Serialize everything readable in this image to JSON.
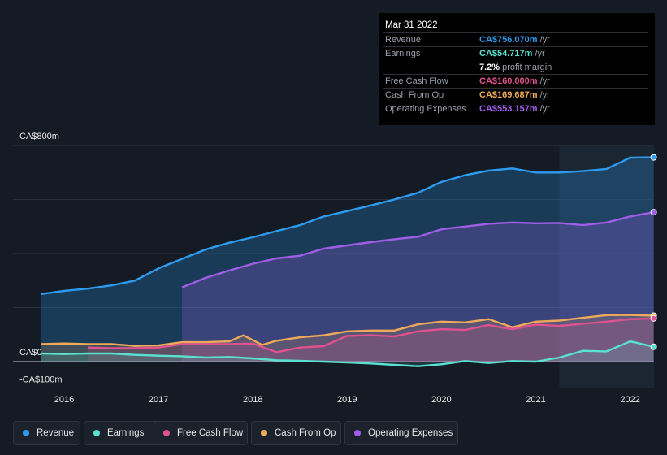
{
  "tooltip": {
    "date": "Mar 31 2022",
    "rows": [
      {
        "label": "Revenue",
        "value": "CA$756.070m",
        "unit": "/yr",
        "color": "#2d9cf0"
      },
      {
        "label": "Earnings",
        "value": "CA$54.717m",
        "unit": "/yr",
        "color": "#59e2cf"
      },
      {
        "label": "Free Cash Flow",
        "value": "CA$160.000m",
        "unit": "/yr",
        "color": "#e0528f"
      },
      {
        "label": "Cash From Op",
        "value": "CA$169.687m",
        "unit": "/yr",
        "color": "#efaa59"
      },
      {
        "label": "Operating Expenses",
        "value": "CA$553.157m",
        "unit": "/yr",
        "color": "#a05de6"
      }
    ],
    "margin_value": "7.2%",
    "margin_label": "profit margin"
  },
  "legend": [
    {
      "label": "Revenue",
      "color": "#2d9cf0"
    },
    {
      "label": "Earnings",
      "color": "#59e2cf"
    },
    {
      "label": "Free Cash Flow",
      "color": "#e0528f"
    },
    {
      "label": "Cash From Op",
      "color": "#efaa59"
    },
    {
      "label": "Operating Expenses",
      "color": "#a05de6"
    }
  ],
  "chart_data": {
    "type": "area",
    "ylim": [
      -100,
      800
    ],
    "y_tick_labels": [
      "CA$800m",
      "CA$0",
      "-CA$100m"
    ],
    "x_tick_labels": [
      "2016",
      "2017",
      "2018",
      "2019",
      "2020",
      "2021",
      "2022"
    ],
    "highlight_start": 2021.25,
    "series": [
      {
        "name": "Revenue",
        "color": "#2d9cf0",
        "x": [
          2015.75,
          2016.0,
          2016.25,
          2016.5,
          2016.75,
          2017.0,
          2017.25,
          2017.5,
          2017.75,
          2018.0,
          2018.25,
          2018.5,
          2018.75,
          2019.0,
          2019.25,
          2019.5,
          2019.75,
          2020.0,
          2020.25,
          2020.5,
          2020.75,
          2021.0,
          2021.25,
          2021.5,
          2021.75,
          2022.0,
          2022.25
        ],
        "values": [
          250,
          262,
          270,
          282,
          300,
          345,
          380,
          415,
          440,
          460,
          483,
          505,
          537,
          557,
          578,
          600,
          625,
          665,
          690,
          707,
          715,
          700,
          700,
          705,
          713,
          755,
          756
        ]
      },
      {
        "name": "Operating Expenses",
        "color": "#a05de6",
        "x": [
          2017.25,
          2017.5,
          2017.75,
          2018.0,
          2018.25,
          2018.5,
          2018.75,
          2019.0,
          2019.25,
          2019.5,
          2019.75,
          2020.0,
          2020.25,
          2020.5,
          2020.75,
          2021.0,
          2021.25,
          2021.5,
          2021.75,
          2022.0,
          2022.25
        ],
        "values": [
          275,
          310,
          337,
          362,
          382,
          392,
          418,
          430,
          442,
          453,
          462,
          490,
          500,
          510,
          515,
          512,
          513,
          505,
          515,
          537,
          553
        ]
      },
      {
        "name": "Cash From Op",
        "color": "#efaa59",
        "x": [
          2015.75,
          2016.0,
          2016.25,
          2016.5,
          2016.75,
          2017.0,
          2017.25,
          2017.5,
          2017.75,
          2017.9,
          2018.1,
          2018.25,
          2018.5,
          2018.75,
          2019.0,
          2019.25,
          2019.5,
          2019.75,
          2020.0,
          2020.25,
          2020.5,
          2020.75,
          2021.0,
          2021.25,
          2021.5,
          2021.75,
          2022.0,
          2022.25
        ],
        "values": [
          65,
          67,
          65,
          65,
          58,
          60,
          72,
          72,
          75,
          97,
          62,
          77,
          90,
          97,
          112,
          115,
          115,
          138,
          148,
          145,
          157,
          127,
          148,
          152,
          162,
          172,
          173,
          170
        ]
      },
      {
        "name": "Free Cash Flow",
        "color": "#e0528f",
        "x": [
          2016.25,
          2016.5,
          2016.75,
          2017.0,
          2017.25,
          2017.5,
          2017.75,
          2018.0,
          2018.25,
          2018.5,
          2018.75,
          2019.0,
          2019.25,
          2019.5,
          2019.75,
          2020.0,
          2020.25,
          2020.5,
          2020.75,
          2021.0,
          2021.25,
          2021.5,
          2021.75,
          2022.0,
          2022.25
        ],
        "values": [
          52,
          50,
          50,
          52,
          65,
          65,
          65,
          67,
          35,
          52,
          57,
          95,
          98,
          93,
          112,
          120,
          117,
          135,
          120,
          137,
          132,
          140,
          148,
          157,
          160
        ]
      },
      {
        "name": "Earnings",
        "color": "#59e2cf",
        "x": [
          2015.75,
          2016.0,
          2016.25,
          2016.5,
          2016.75,
          2017.0,
          2017.25,
          2017.5,
          2017.75,
          2018.0,
          2018.25,
          2018.5,
          2018.75,
          2019.0,
          2019.25,
          2019.5,
          2019.75,
          2020.0,
          2020.25,
          2020.5,
          2020.75,
          2021.0,
          2021.25,
          2021.5,
          2021.75,
          2022.0,
          2022.25
        ],
        "values": [
          30,
          28,
          30,
          30,
          25,
          22,
          20,
          15,
          17,
          12,
          5,
          3,
          0,
          -3,
          -7,
          -12,
          -17,
          -10,
          2,
          -5,
          2,
          0,
          15,
          40,
          38,
          75,
          55
        ]
      }
    ]
  }
}
